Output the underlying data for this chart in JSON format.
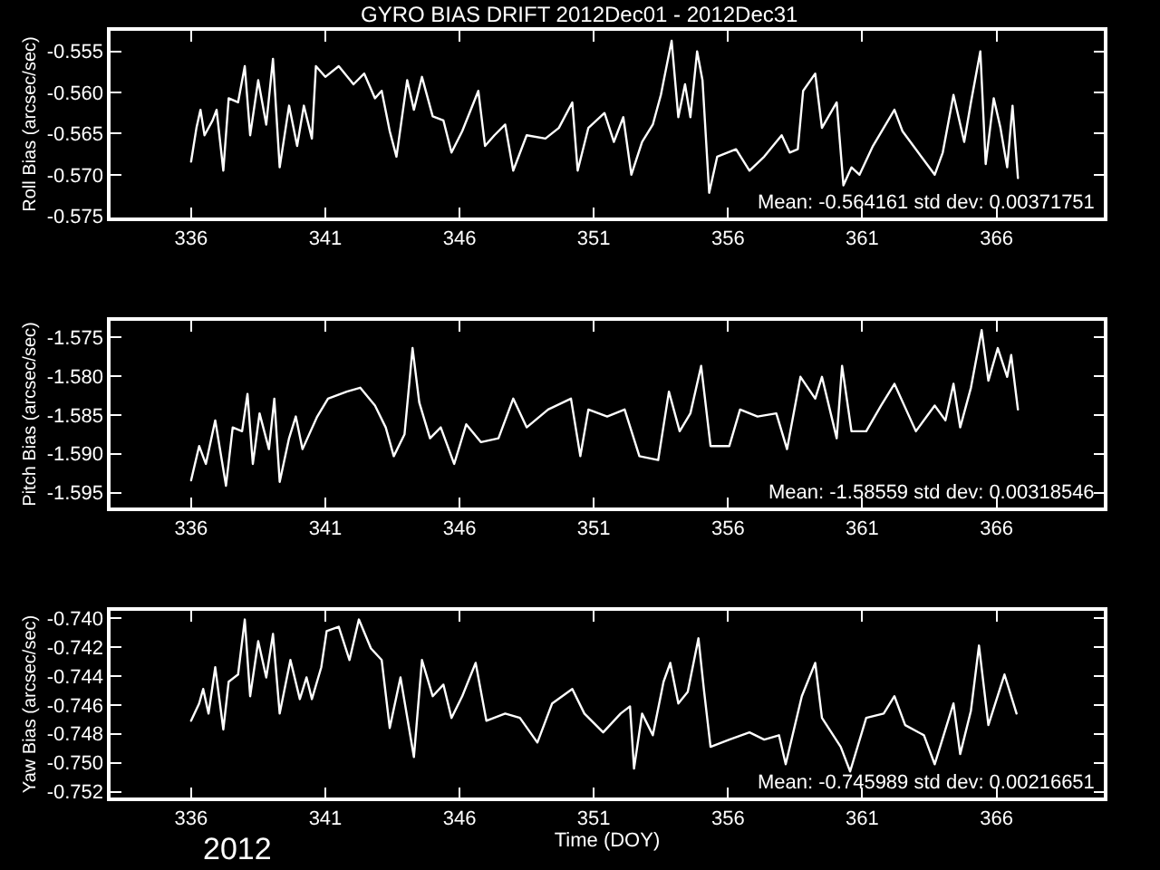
{
  "chart_data": [
    {
      "type": "line",
      "title": "GYRO BIAS DRIFT 2012Dec01 - 2012Dec31",
      "ylabel": "Roll Bias (arcsec/sec)",
      "annotations": [
        "Mean: -0.564161 std dev: 0.00371751"
      ],
      "grid": false,
      "line_style": "solid",
      "marker": "none",
      "xlim": [
        333,
        370
      ],
      "xticks": [
        336,
        341,
        346,
        351,
        356,
        361,
        366
      ],
      "ylim": [
        -0.5752,
        -0.5525
      ],
      "yticks": [
        {
          "value": -0.555,
          "label": "-0.555"
        },
        {
          "value": -0.56,
          "label": "-0.560"
        },
        {
          "value": -0.565,
          "label": "-0.565"
        },
        {
          "value": -0.57,
          "label": "-0.570"
        },
        {
          "value": -0.575,
          "label": "-0.575"
        }
      ],
      "x": [
        336.0,
        336.2,
        336.35,
        336.5,
        336.8,
        336.95,
        337.2,
        337.4,
        337.75,
        338.0,
        338.2,
        338.5,
        338.8,
        339.05,
        339.3,
        339.65,
        339.95,
        340.2,
        340.5,
        340.65,
        341.0,
        341.5,
        342.05,
        342.45,
        342.85,
        343.1,
        343.4,
        343.65,
        344.05,
        344.3,
        344.6,
        345.0,
        345.4,
        345.7,
        346.1,
        346.7,
        346.95,
        347.3,
        347.7,
        348.0,
        348.5,
        349.2,
        349.7,
        350.2,
        350.4,
        350.8,
        351.4,
        351.75,
        352.1,
        352.4,
        352.8,
        353.2,
        353.5,
        353.9,
        354.15,
        354.4,
        354.6,
        354.85,
        355.05,
        355.3,
        355.6,
        356.3,
        356.8,
        357.35,
        358.0,
        358.3,
        358.6,
        358.8,
        359.25,
        359.5,
        360.05,
        360.3,
        360.6,
        360.9,
        361.4,
        362.2,
        362.5,
        363.0,
        363.7,
        364.0,
        364.4,
        364.8,
        365.05,
        365.4,
        365.6,
        365.9,
        366.15,
        366.4,
        366.6,
        366.8
      ],
      "series": [
        {
          "color": "#ffffff",
          "values": [
            -0.5684,
            -0.5643,
            -0.5621,
            -0.5652,
            -0.5634,
            -0.5621,
            -0.5695,
            -0.5607,
            -0.5612,
            -0.5568,
            -0.5652,
            -0.5585,
            -0.5639,
            -0.5559,
            -0.5691,
            -0.5616,
            -0.5665,
            -0.5616,
            -0.5656,
            -0.5568,
            -0.5581,
            -0.5568,
            -0.559,
            -0.5577,
            -0.5607,
            -0.5598,
            -0.5647,
            -0.5678,
            -0.5585,
            -0.5621,
            -0.5581,
            -0.5629,
            -0.5634,
            -0.5673,
            -0.5647,
            -0.5598,
            -0.5665,
            -0.5652,
            -0.5639,
            -0.5695,
            -0.5652,
            -0.5656,
            -0.5643,
            -0.5612,
            -0.5695,
            -0.5643,
            -0.5625,
            -0.566,
            -0.563,
            -0.57,
            -0.566,
            -0.5639,
            -0.5603,
            -0.5537,
            -0.563,
            -0.559,
            -0.563,
            -0.555,
            -0.5585,
            -0.5722,
            -0.5678,
            -0.5669,
            -0.5695,
            -0.5678,
            -0.5652,
            -0.5673,
            -0.5669,
            -0.5598,
            -0.5577,
            -0.5643,
            -0.5612,
            -0.5713,
            -0.5691,
            -0.57,
            -0.5665,
            -0.5621,
            -0.5647,
            -0.5669,
            -0.57,
            -0.5673,
            -0.5603,
            -0.566,
            -0.5612,
            -0.555,
            -0.5687,
            -0.5607,
            -0.5643,
            -0.5691,
            -0.5616,
            -0.5704
          ]
        }
      ]
    },
    {
      "type": "line",
      "ylabel": "Pitch Bias (arcsec/sec)",
      "annotations": [
        "Mean: -1.58559 std dev: 0.00318546"
      ],
      "grid": false,
      "line_style": "solid",
      "marker": "none",
      "xlim": [
        333,
        370
      ],
      "xticks": [
        336,
        341,
        346,
        351,
        356,
        361,
        366
      ],
      "ylim": [
        -1.5969,
        -1.5729
      ],
      "yticks": [
        {
          "value": -1.575,
          "label": "-1.575"
        },
        {
          "value": -1.58,
          "label": "-1.580"
        },
        {
          "value": -1.585,
          "label": "-1.585"
        },
        {
          "value": -1.59,
          "label": "-1.590"
        },
        {
          "value": -1.595,
          "label": "-1.595"
        }
      ],
      "x": [
        336.0,
        336.3,
        336.55,
        336.9,
        337.3,
        337.55,
        337.9,
        338.1,
        338.3,
        338.55,
        338.9,
        339.1,
        339.3,
        339.65,
        339.9,
        340.15,
        340.7,
        341.1,
        341.8,
        342.3,
        342.85,
        343.25,
        343.55,
        343.95,
        344.25,
        344.5,
        344.9,
        345.3,
        345.8,
        346.25,
        346.8,
        347.45,
        348.0,
        348.5,
        349.3,
        350.15,
        350.5,
        350.8,
        351.5,
        352.15,
        352.7,
        353.4,
        353.8,
        354.2,
        354.6,
        355.0,
        355.35,
        356.05,
        356.45,
        357.1,
        357.8,
        358.2,
        358.7,
        359.25,
        359.5,
        360.05,
        360.25,
        360.6,
        361.15,
        361.7,
        362.2,
        363.0,
        363.7,
        364.1,
        364.4,
        364.65,
        365.05,
        365.45,
        365.7,
        366.05,
        366.4,
        366.55,
        366.8
      ],
      "series": [
        {
          "color": "#ffffff",
          "values": [
            -1.5934,
            -1.589,
            -1.5913,
            -1.5857,
            -1.5941,
            -1.5866,
            -1.5871,
            -1.5823,
            -1.5913,
            -1.5848,
            -1.5894,
            -1.5829,
            -1.5936,
            -1.588,
            -1.5852,
            -1.5894,
            -1.5852,
            -1.5829,
            -1.582,
            -1.5815,
            -1.5838,
            -1.5866,
            -1.5903,
            -1.5875,
            -1.5764,
            -1.5834,
            -1.588,
            -1.5866,
            -1.5913,
            -1.5862,
            -1.5885,
            -1.588,
            -1.5829,
            -1.5866,
            -1.5843,
            -1.5829,
            -1.5903,
            -1.5843,
            -1.5852,
            -1.5843,
            -1.5903,
            -1.5908,
            -1.582,
            -1.5871,
            -1.5848,
            -1.5787,
            -1.589,
            -1.589,
            -1.5843,
            -1.5852,
            -1.5848,
            -1.5894,
            -1.5801,
            -1.5829,
            -1.5801,
            -1.588,
            -1.5787,
            -1.5871,
            -1.5871,
            -1.5838,
            -1.581,
            -1.5871,
            -1.5838,
            -1.5857,
            -1.581,
            -1.5866,
            -1.5815,
            -1.5741,
            -1.5806,
            -1.5764,
            -1.5801,
            -1.5773,
            -1.5843
          ]
        }
      ]
    },
    {
      "type": "line",
      "ylabel": "Yaw Bias (arcsec/sec)",
      "xlabel": "Time (DOY)",
      "annotations": [
        "Mean: -0.745989 std dev: 0.00216651",
        "2012"
      ],
      "grid": false,
      "line_style": "solid",
      "marker": "none",
      "xlim": [
        333,
        370
      ],
      "xticks": [
        336,
        341,
        346,
        351,
        356,
        361,
        366
      ],
      "ylim": [
        -0.7524,
        -0.7395
      ],
      "yticks": [
        {
          "value": -0.74,
          "label": "-0.740"
        },
        {
          "value": -0.742,
          "label": "-0.742"
        },
        {
          "value": -0.744,
          "label": "-0.744"
        },
        {
          "value": -0.746,
          "label": "-0.746"
        },
        {
          "value": -0.748,
          "label": "-0.748"
        },
        {
          "value": -0.75,
          "label": "-0.750"
        },
        {
          "value": -0.752,
          "label": "-0.752"
        }
      ],
      "x": [
        336.0,
        336.3,
        336.45,
        336.65,
        336.9,
        337.2,
        337.4,
        337.75,
        338.0,
        338.2,
        338.5,
        338.8,
        339.05,
        339.3,
        339.7,
        340.05,
        340.3,
        340.5,
        340.85,
        341.05,
        341.5,
        341.9,
        342.25,
        342.7,
        343.1,
        343.4,
        343.8,
        344.3,
        344.6,
        345.0,
        345.4,
        345.7,
        346.1,
        346.6,
        347.0,
        347.7,
        348.25,
        348.9,
        349.45,
        350.2,
        350.65,
        351.35,
        352.0,
        352.35,
        352.5,
        352.8,
        353.2,
        353.6,
        353.85,
        354.15,
        354.5,
        354.9,
        355.1,
        355.35,
        356.05,
        356.8,
        357.35,
        357.9,
        358.15,
        358.75,
        359.25,
        359.5,
        360.2,
        360.55,
        361.15,
        361.8,
        362.2,
        362.6,
        363.3,
        363.7,
        364.4,
        364.65,
        365.05,
        365.35,
        365.7,
        366.3,
        366.75
      ],
      "series": [
        {
          "color": "#ffffff",
          "values": [
            -0.7471,
            -0.7459,
            -0.7449,
            -0.7466,
            -0.7434,
            -0.7477,
            -0.7444,
            -0.7439,
            -0.7401,
            -0.7454,
            -0.7416,
            -0.7441,
            -0.7411,
            -0.7466,
            -0.7429,
            -0.7456,
            -0.7441,
            -0.7456,
            -0.7434,
            -0.7409,
            -0.7406,
            -0.7429,
            -0.7401,
            -0.7421,
            -0.7429,
            -0.7476,
            -0.7441,
            -0.7496,
            -0.7429,
            -0.7454,
            -0.7446,
            -0.7469,
            -0.7454,
            -0.7431,
            -0.7471,
            -0.7466,
            -0.7469,
            -0.7486,
            -0.7459,
            -0.7449,
            -0.7466,
            -0.7479,
            -0.7466,
            -0.7461,
            -0.7504,
            -0.7466,
            -0.7481,
            -0.7444,
            -0.7431,
            -0.7459,
            -0.7451,
            -0.7414,
            -0.7449,
            -0.7489,
            -0.7484,
            -0.7479,
            -0.7484,
            -0.7481,
            -0.7501,
            -0.7454,
            -0.7431,
            -0.7469,
            -0.7489,
            -0.7506,
            -0.7469,
            -0.7466,
            -0.7454,
            -0.7474,
            -0.7481,
            -0.7501,
            -0.7459,
            -0.7494,
            -0.7464,
            -0.7419,
            -0.7474,
            -0.7439,
            -0.7466
          ]
        }
      ]
    }
  ]
}
